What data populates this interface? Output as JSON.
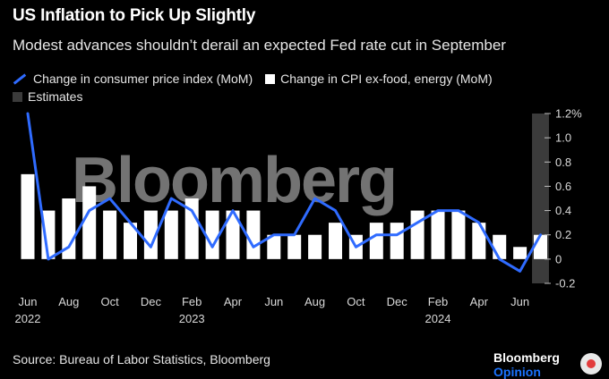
{
  "header": {
    "title": "US Inflation to Pick Up Slightly",
    "subtitle": "Modest advances shouldn’t derail an expected Fed rate cut in September"
  },
  "legend": {
    "line_label": "Change in consumer price index (MoM)",
    "bar_label": "Change in CPI ex-food, energy (MoM)",
    "estimates_label": "Estimates"
  },
  "footer": {
    "source": "Source: Bureau of Labor Statistics, Bloomberg",
    "brand_main": "Bloomberg",
    "brand_accent": "Opinion"
  },
  "watermark": "Bloomberg",
  "colors": {
    "background": "#000000",
    "line": "#2f6bff",
    "bars": "#ffffff",
    "estimates": "#3b3b3b",
    "text": "#e6e6e6"
  },
  "chart_data": {
    "type": "bar",
    "title": "US Inflation to Pick Up Slightly",
    "subtitle": "Modest advances shouldn’t derail an expected Fed rate cut in September",
    "categories": [
      "Jun 2022",
      "Jul 2022",
      "Aug 2022",
      "Sep 2022",
      "Oct 2022",
      "Nov 2022",
      "Dec 2022",
      "Jan 2023",
      "Feb 2023",
      "Mar 2023",
      "Apr 2023",
      "May 2023",
      "Jun 2023",
      "Jul 2023",
      "Aug 2023",
      "Sep 2023",
      "Oct 2023",
      "Nov 2023",
      "Dec 2023",
      "Jan 2024",
      "Feb 2024",
      "Mar 2024",
      "Apr 2024",
      "May 2024",
      "Jun 2024",
      "Jul 2024"
    ],
    "series": [
      {
        "name": "Change in CPI ex-food, energy (MoM)",
        "type": "bar",
        "values": [
          0.7,
          0.4,
          0.5,
          0.6,
          0.4,
          0.3,
          0.4,
          0.4,
          0.5,
          0.4,
          0.4,
          0.4,
          0.2,
          0.2,
          0.2,
          0.3,
          0.2,
          0.3,
          0.3,
          0.4,
          0.4,
          0.4,
          0.3,
          0.2,
          0.1,
          0.2
        ]
      },
      {
        "name": "Change in consumer price index (MoM)",
        "type": "line",
        "values": [
          1.2,
          0.0,
          0.1,
          0.4,
          0.5,
          0.3,
          0.1,
          0.5,
          0.4,
          0.1,
          0.4,
          0.1,
          0.2,
          0.2,
          0.5,
          0.4,
          0.1,
          0.2,
          0.2,
          0.3,
          0.4,
          0.4,
          0.3,
          0.0,
          -0.1,
          0.2
        ]
      }
    ],
    "estimates": {
      "label": "Estimates",
      "categories": [
        "Jul 2024"
      ]
    },
    "x_tick_labels": [
      {
        "index": 0,
        "label": "Jun",
        "year": "2022"
      },
      {
        "index": 2,
        "label": "Aug"
      },
      {
        "index": 4,
        "label": "Oct"
      },
      {
        "index": 6,
        "label": "Dec"
      },
      {
        "index": 8,
        "label": "Feb",
        "year": "2023"
      },
      {
        "index": 10,
        "label": "Apr"
      },
      {
        "index": 12,
        "label": "Jun"
      },
      {
        "index": 14,
        "label": "Aug"
      },
      {
        "index": 16,
        "label": "Oct"
      },
      {
        "index": 18,
        "label": "Dec"
      },
      {
        "index": 20,
        "label": "Feb",
        "year": "2024"
      },
      {
        "index": 22,
        "label": "Apr"
      },
      {
        "index": 24,
        "label": "Jun"
      }
    ],
    "y_ticks": [
      {
        "value": 1.2,
        "label": "1.2%"
      },
      {
        "value": 1.0,
        "label": "1.0"
      },
      {
        "value": 0.8,
        "label": "0.8"
      },
      {
        "value": 0.6,
        "label": "0.6"
      },
      {
        "value": 0.4,
        "label": "0.4"
      },
      {
        "value": 0.2,
        "label": "0.2"
      },
      {
        "value": 0.0,
        "label": "0"
      },
      {
        "value": -0.2,
        "label": "-0.2"
      }
    ],
    "ylim": [
      -0.2,
      1.2
    ],
    "axis_side": "right",
    "grid": false,
    "source": "Source: Bureau of Labor Statistics, Bloomberg"
  }
}
